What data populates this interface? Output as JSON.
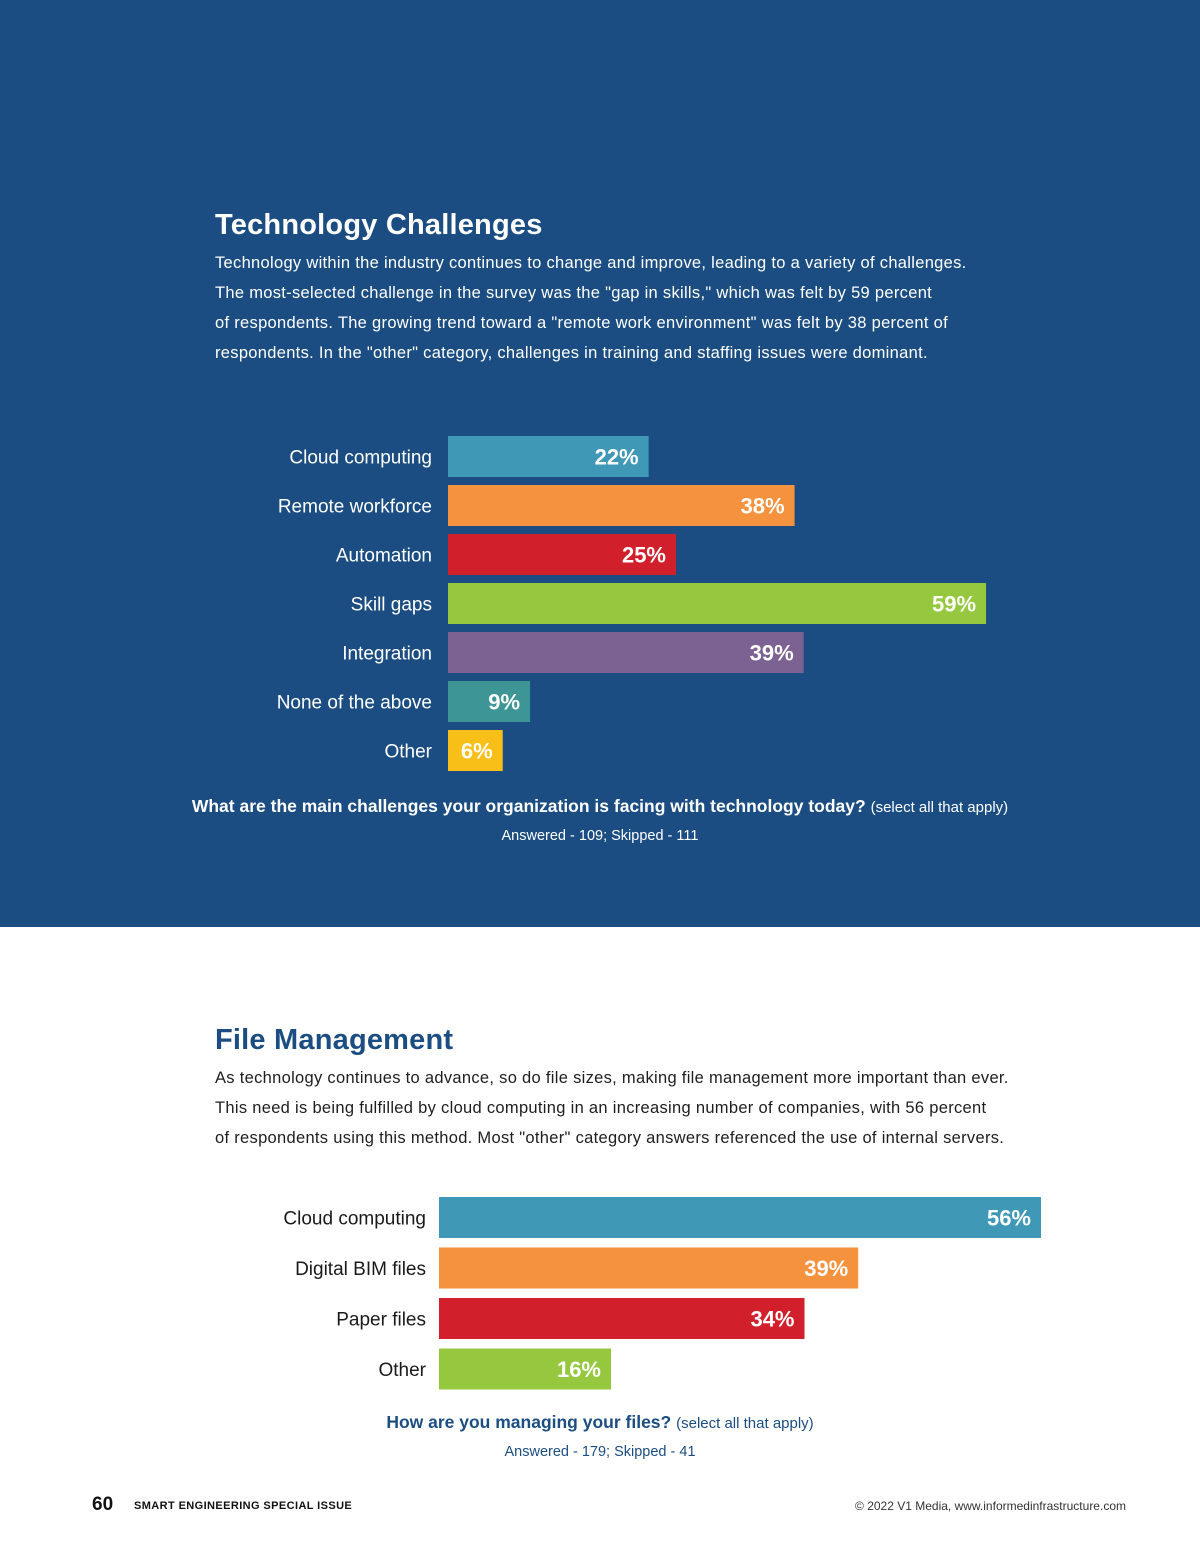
{
  "technology": {
    "title": "Technology Challenges",
    "paragraph": [
      "Technology within the industry continues to change and improve, leading to a variety of challenges.",
      "The most-selected challenge in the survey was the \"gap in skills,\" which was felt by 59 percent",
      "of respondents. The growing trend toward a \"remote work environment\" was felt by 38 percent of",
      "respondents. In the \"other\" category, challenges in training and staffing issues were dominant."
    ],
    "question": "What are the main challenges your organization is facing with technology today?",
    "question_note": "(select all that apply)",
    "answered": "Answered - 109;  Skipped - 111"
  },
  "files": {
    "title": "File Management",
    "paragraph": [
      "As technology continues to advance, so do file sizes, making file management more important than ever.",
      "This need is being fulfilled by cloud computing in an increasing number of companies, with 56 percent",
      "of respondents using this method. Most \"other\" category answers referenced the use of internal servers."
    ],
    "question": "How are you managing your files?",
    "question_note": "(select all that apply)",
    "answered": "Answered - 179;  Skipped - 41"
  },
  "footer": {
    "page_number": "60",
    "publication": "SMART ENGINEERING SPECIAL ISSUE",
    "copyright": "© 2022 V1 Media, www.informedinfrastructure.com"
  },
  "colors": {
    "top_background": "#1b4d82",
    "title_blue": "#1b4d82"
  },
  "chart_data": [
    {
      "type": "bar",
      "orientation": "horizontal",
      "categories": [
        "Cloud computing",
        "Remote workforce",
        "Automation",
        "Skill gaps",
        "Integration",
        "None of the above",
        "Other"
      ],
      "values": [
        22,
        38,
        25,
        59,
        39,
        9,
        6
      ],
      "value_labels": [
        "22%",
        "38%",
        "25%",
        "59%",
        "39%",
        "9%",
        "6%"
      ],
      "colors": [
        "#3f99b6",
        "#f5923e",
        "#d11f2b",
        "#96c83f",
        "#7c6292",
        "#3d9596",
        "#f7bf17"
      ],
      "unit": "%",
      "xlim": [
        0,
        100
      ],
      "grid": false,
      "legend": "none"
    },
    {
      "type": "bar",
      "orientation": "horizontal",
      "categories": [
        "Cloud computing",
        "Digital BIM files",
        "Paper files",
        "Other"
      ],
      "values": [
        56,
        39,
        34,
        16
      ],
      "value_labels": [
        "56%",
        "39%",
        "34%",
        "16%"
      ],
      "colors": [
        "#3f99b6",
        "#f5923e",
        "#d11f2b",
        "#96c83f"
      ],
      "unit": "%",
      "xlim": [
        0,
        100
      ],
      "grid": false,
      "legend": "none"
    }
  ]
}
